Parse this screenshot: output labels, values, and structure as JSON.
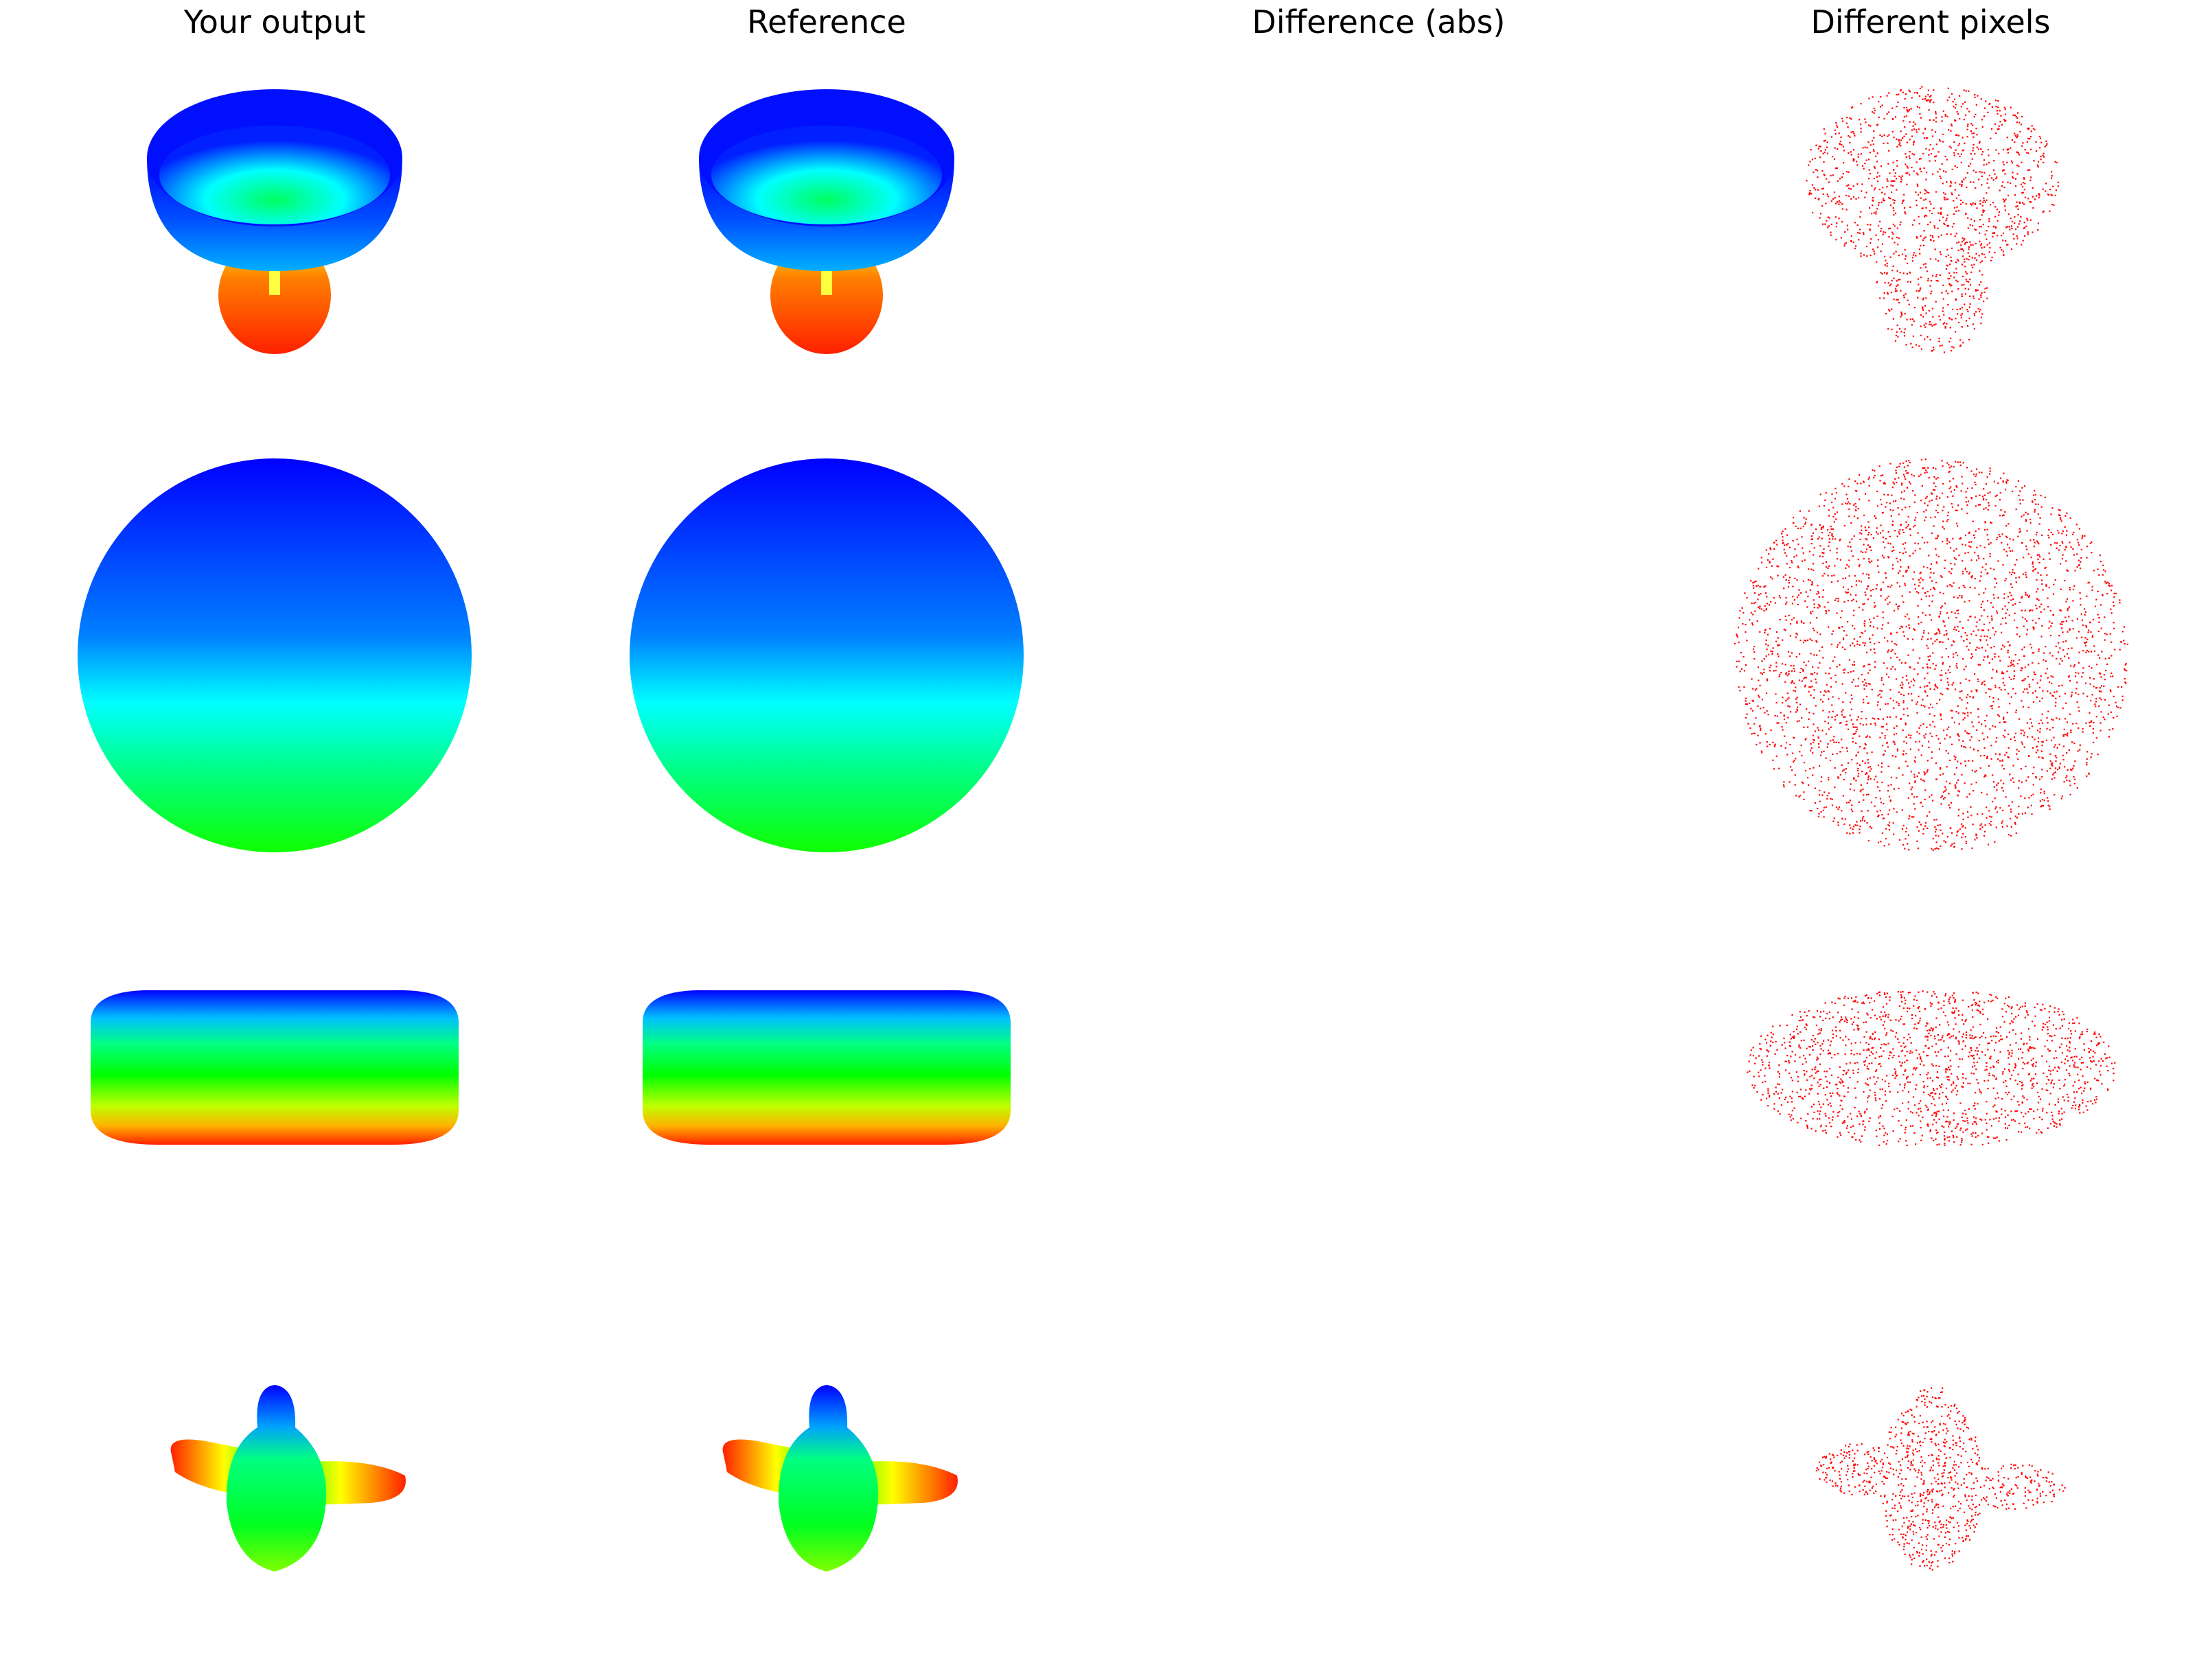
{
  "columns": [
    {
      "title": "Your output"
    },
    {
      "title": "Reference"
    },
    {
      "title": "Difference (abs)"
    },
    {
      "title": "Different pixels"
    }
  ],
  "rows": [
    {
      "shape": "bowl-on-stem"
    },
    {
      "shape": "sphere"
    },
    {
      "shape": "flattened-ellipsoid"
    },
    {
      "shape": "four-lobed-pinwheel"
    }
  ],
  "colors": {
    "background": "#ffffff",
    "gradient_top": "#0000ff",
    "gradient_mid1": "#00ffff",
    "gradient_mid2": "#00ff00",
    "gradient_mid3": "#ffff00",
    "gradient_bottom": "#ff2000",
    "diff_dots": "#ff0000"
  }
}
